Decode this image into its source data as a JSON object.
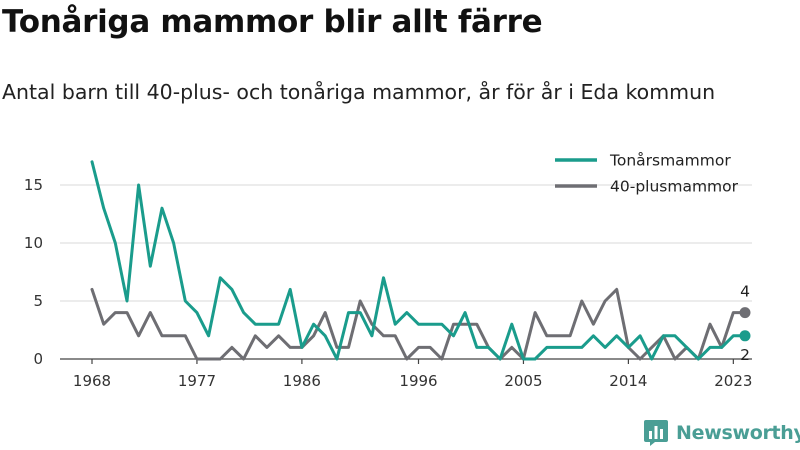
{
  "header": {
    "title": "Tonåriga mammor blir allt färre",
    "subtitle": "Antal barn till 40-plus- och tonåriga mammor, år för år i Eda kommun"
  },
  "brand": {
    "name": "Newsworthy",
    "color": "#4a9e95"
  },
  "chart_data": {
    "type": "line",
    "x": [
      1968,
      1969,
      1970,
      1971,
      1972,
      1973,
      1974,
      1975,
      1976,
      1977,
      1978,
      1979,
      1980,
      1981,
      1982,
      1983,
      1984,
      1985,
      1986,
      1987,
      1988,
      1989,
      1990,
      1991,
      1992,
      1993,
      1994,
      1995,
      1996,
      1997,
      1998,
      1999,
      2000,
      2001,
      2002,
      2003,
      2004,
      2005,
      2006,
      2007,
      2008,
      2009,
      2010,
      2011,
      2012,
      2013,
      2014,
      2015,
      2016,
      2017,
      2018,
      2019,
      2020,
      2021,
      2022,
      2023,
      2024
    ],
    "series": [
      {
        "name": "Tonårsmammor",
        "color": "#1a9c8c",
        "values": [
          17,
          13,
          10,
          5,
          15,
          8,
          13,
          10,
          5,
          4,
          2,
          7,
          6,
          4,
          3,
          3,
          3,
          6,
          1,
          3,
          2,
          0,
          4,
          4,
          2,
          7,
          3,
          4,
          3,
          3,
          3,
          2,
          4,
          1,
          1,
          0,
          3,
          0,
          0,
          1,
          1,
          1,
          1,
          2,
          1,
          2,
          1,
          2,
          0,
          2,
          2,
          1,
          0,
          1,
          1,
          2,
          2
        ],
        "end_label": "2"
      },
      {
        "name": "40-plusmammor",
        "color": "#6e6e73",
        "values": [
          6,
          3,
          4,
          4,
          2,
          4,
          2,
          2,
          2,
          0,
          0,
          0,
          1,
          0,
          2,
          1,
          2,
          1,
          1,
          2,
          4,
          1,
          1,
          5,
          3,
          2,
          2,
          0,
          1,
          1,
          0,
          3,
          3,
          3,
          1,
          0,
          1,
          0,
          4,
          2,
          2,
          2,
          5,
          3,
          5,
          6,
          1,
          0,
          1,
          2,
          0,
          1,
          0,
          3,
          1,
          4,
          4
        ],
        "end_label": "4"
      }
    ],
    "x_ticks": [
      1968,
      1977,
      1986,
      1996,
      2005,
      2014,
      2023
    ],
    "y_ticks": [
      0,
      5,
      10,
      15
    ],
    "xlim": [
      1968,
      2024
    ],
    "ylim": [
      0,
      17
    ],
    "grid": true,
    "legend_position": "top-right"
  }
}
